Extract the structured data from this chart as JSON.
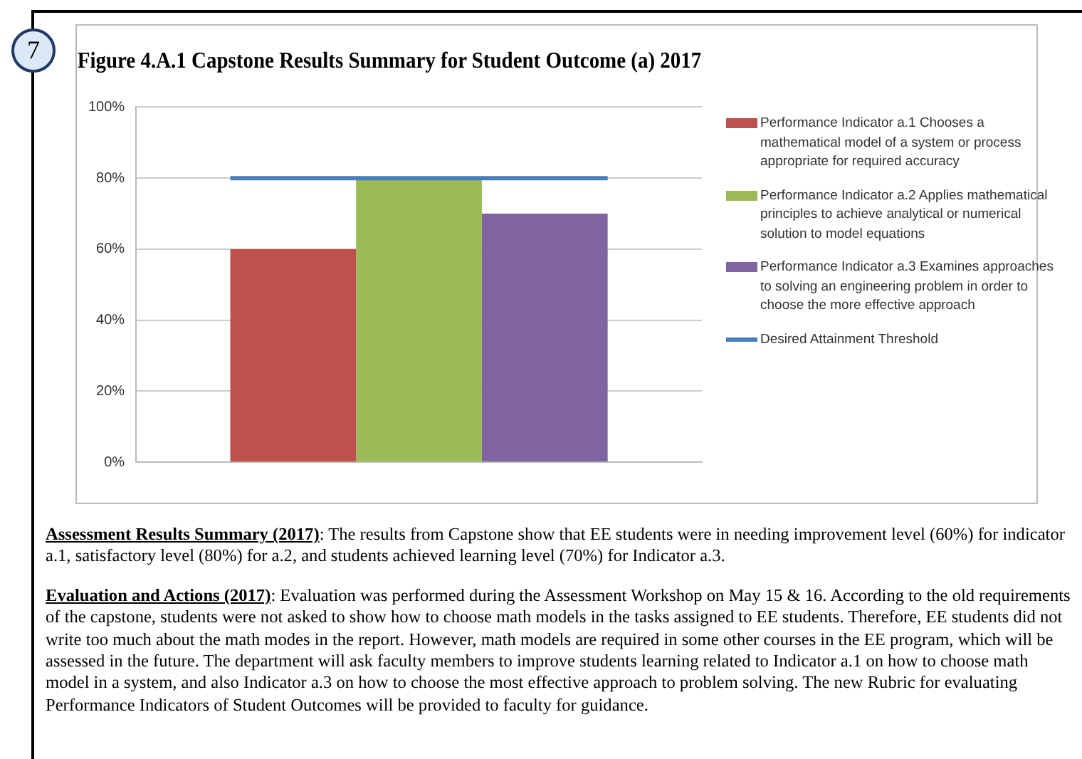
{
  "chart_data": {
    "type": "bar",
    "title": "Figure 4.A.1 Capstone Results Summary for Student Outcome (a) 2017",
    "categories": [
      null
    ],
    "series": [
      {
        "name": "Performance Indicator a.1 Chooses a mathematical model of a system or process appropriate for required accuracy",
        "color": "#c0504d",
        "values": [
          60
        ]
      },
      {
        "name": "Performance Indicator a.2 Applies mathematical principles to achieve analytical or numerical solution to model equations",
        "color": "#9bbb59",
        "values": [
          80
        ]
      },
      {
        "name": "Performance Indicator a.3 Examines approaches to solving an engineering problem in order to choose the more effective approach",
        "color": "#8064a2",
        "values": [
          70
        ]
      }
    ],
    "ref_lines": [
      {
        "axis": "y",
        "value": 80,
        "label": "Desired Attainment Threshold",
        "color": "#4a7ebb"
      }
    ],
    "ylim": [
      0,
      100
    ],
    "yticks": [
      {
        "value": 0,
        "label": "0%"
      },
      {
        "value": 20,
        "label": "20%"
      },
      {
        "value": 40,
        "label": "40%"
      },
      {
        "value": 60,
        "label": "60%"
      },
      {
        "value": 80,
        "label": "80%"
      },
      {
        "value": 100,
        "label": "100%"
      }
    ],
    "grid": "y",
    "legend": "right",
    "annotations": [
      "7",
      "Assessment Results Summary (2017): The results from Capstone show that EE students were in needing improvement level (60%) for indicator a.1, satisfactory level (80%) for a.2, and students achieved learning level (70%) for Indicator a.3.",
      "Evaluation and Actions (2017): Evaluation was performed during the Assessment Workshop on May 15 & 16. According to the old requirements of the capstone, students were not asked to show how to choose math models in the tasks assigned to EE students. Therefore, EE students did not write too much about the math modes in the report. However, math models are required in some other courses in the EE program, which will be assessed in the future. The department will ask faculty members to improve students learning related to Indicator a.1 on how to choose math model in a system, and also Indicator a.3 on how to choose the most effective approach to problem solving. The new Rubric for evaluating Performance Indicators of Student Outcomes will be provided to faculty for guidance."
    ]
  }
}
